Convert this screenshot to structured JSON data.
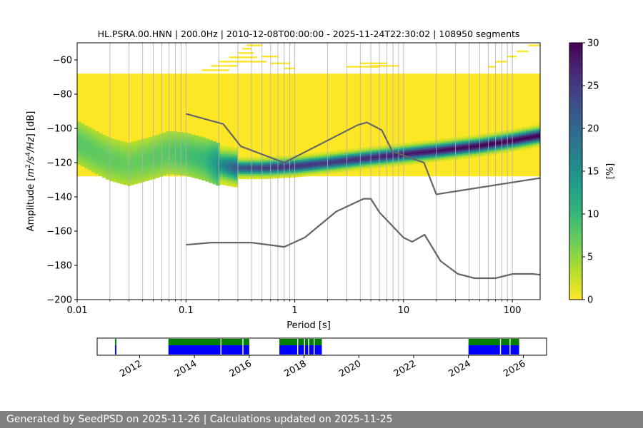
{
  "chart_data": {
    "type": "heatmap",
    "title": "HL.PSRA.00.HNN | 200.0Hz | 2010-12-08T00:00:00 - 2025-11-24T22:30:02 | 108950 segments",
    "xlabel": "Period [s]",
    "ylabel_parts": [
      "Amplitude [",
      "m",
      "2",
      "/",
      "s",
      "4",
      "/",
      "Hz",
      "] [dB]"
    ],
    "x_scale": "log",
    "xlim": [
      0.01,
      180
    ],
    "ylim": [
      -200,
      -50
    ],
    "x_ticks": [
      {
        "value": 0.01,
        "label": "0.01"
      },
      {
        "value": 0.1,
        "label": "0.1"
      },
      {
        "value": 1,
        "label": "1"
      },
      {
        "value": 10,
        "label": "10"
      },
      {
        "value": 100,
        "label": "100"
      }
    ],
    "y_ticks": [
      {
        "value": -60,
        "label": "−60"
      },
      {
        "value": -80,
        "label": "−80"
      },
      {
        "value": -100,
        "label": "−100"
      },
      {
        "value": -120,
        "label": "−120"
      },
      {
        "value": -140,
        "label": "−140"
      },
      {
        "value": -160,
        "label": "−160"
      },
      {
        "value": -180,
        "label": "−180"
      },
      {
        "value": -200,
        "label": "−200"
      }
    ],
    "grid": "x-minor",
    "colorbar": {
      "label": "[%]",
      "range": [
        0,
        30
      ],
      "ticks": [
        {
          "value": 0,
          "label": "0"
        },
        {
          "value": 5,
          "label": "5"
        },
        {
          "value": 10,
          "label": "10"
        },
        {
          "value": 15,
          "label": "15"
        },
        {
          "value": 20,
          "label": "20"
        },
        {
          "value": 25,
          "label": "25"
        },
        {
          "value": 30,
          "label": "30"
        }
      ],
      "colormap": [
        "#fde725",
        "#b5de2b",
        "#6ece58",
        "#35b779",
        "#1f9e89",
        "#26828e",
        "#31688e",
        "#3e4989",
        "#482878",
        "#440154"
      ]
    },
    "yellow_color": "#fde725",
    "noise_model_color": "#666666",
    "background_band": {
      "x": [
        0.0042,
        180
      ],
      "y_top": -68,
      "y_bottom": -128
    },
    "mode_curve": [
      {
        "x": 0.01,
        "y": -108
      },
      {
        "x": 0.015,
        "y": -114
      },
      {
        "x": 0.02,
        "y": -118
      },
      {
        "x": 0.03,
        "y": -121
      },
      {
        "x": 0.05,
        "y": -117
      },
      {
        "x": 0.07,
        "y": -114
      },
      {
        "x": 0.1,
        "y": -115
      },
      {
        "x": 0.15,
        "y": -118
      },
      {
        "x": 0.2,
        "y": -121
      },
      {
        "x": 0.3,
        "y": -123
      },
      {
        "x": 0.5,
        "y": -123
      },
      {
        "x": 1,
        "y": -122
      },
      {
        "x": 2,
        "y": -120
      },
      {
        "x": 5,
        "y": -117
      },
      {
        "x": 10,
        "y": -115
      },
      {
        "x": 20,
        "y": -113
      },
      {
        "x": 50,
        "y": -110
      },
      {
        "x": 100,
        "y": -107
      },
      {
        "x": 180,
        "y": -104
      }
    ],
    "mode_percent": [
      {
        "x": 0.01,
        "p": 8
      },
      {
        "x": 0.03,
        "p": 7
      },
      {
        "x": 0.07,
        "p": 8
      },
      {
        "x": 0.15,
        "p": 10
      },
      {
        "x": 0.3,
        "p": 22
      },
      {
        "x": 0.7,
        "p": 26
      },
      {
        "x": 2,
        "p": 25
      },
      {
        "x": 10,
        "p": 28
      },
      {
        "x": 50,
        "p": 30
      },
      {
        "x": 180,
        "p": 30
      }
    ],
    "nhnm": [
      {
        "x": 0.1,
        "y": -91.5
      },
      {
        "x": 0.22,
        "y": -97.4
      },
      {
        "x": 0.32,
        "y": -110.5
      },
      {
        "x": 0.8,
        "y": -120
      },
      {
        "x": 3.8,
        "y": -98
      },
      {
        "x": 4.6,
        "y": -96.5
      },
      {
        "x": 6.3,
        "y": -101
      },
      {
        "x": 7.9,
        "y": -113.5
      },
      {
        "x": 15.4,
        "y": -120
      },
      {
        "x": 20,
        "y": -138.5
      },
      {
        "x": 180,
        "y": -129
      }
    ],
    "nlnm": [
      {
        "x": 0.1,
        "y": -168
      },
      {
        "x": 0.17,
        "y": -166.7
      },
      {
        "x": 0.4,
        "y": -166.7
      },
      {
        "x": 0.8,
        "y": -169.2
      },
      {
        "x": 1.24,
        "y": -163.7
      },
      {
        "x": 2.4,
        "y": -148.6
      },
      {
        "x": 4.3,
        "y": -141.1
      },
      {
        "x": 5,
        "y": -141.1
      },
      {
        "x": 6,
        "y": -149
      },
      {
        "x": 10,
        "y": -163.8
      },
      {
        "x": 12,
        "y": -166.2
      },
      {
        "x": 15.6,
        "y": -162.1
      },
      {
        "x": 21.9,
        "y": -177.5
      },
      {
        "x": 31.6,
        "y": -185
      },
      {
        "x": 45,
        "y": -187.5
      },
      {
        "x": 70,
        "y": -187.5
      },
      {
        "x": 101,
        "y": -185
      },
      {
        "x": 154,
        "y": -185
      },
      {
        "x": 180,
        "y": -185.5
      }
    ],
    "yellow_sparse": [
      {
        "x0": 0.012,
        "x1": 0.015,
        "y": -123
      },
      {
        "x0": 0.015,
        "x1": 0.03,
        "y": -125
      },
      {
        "x0": 0.03,
        "x1": 0.4,
        "y": -126
      },
      {
        "x0": 0.017,
        "x1": 0.2,
        "y": -127.5
      },
      {
        "x0": 2,
        "x1": 30,
        "y": -124.5
      },
      {
        "x0": 1,
        "x1": 9,
        "y": -126
      },
      {
        "x0": 10,
        "x1": 50,
        "y": -122.5
      },
      {
        "x0": 20,
        "x1": 120,
        "y": -119.5
      },
      {
        "x0": 60,
        "x1": 180,
        "y": -117
      },
      {
        "x0": 100,
        "x1": 180,
        "y": -114.5
      },
      {
        "x0": 0.14,
        "x1": 0.25,
        "y": -66
      },
      {
        "x0": 0.17,
        "x1": 0.3,
        "y": -63.5
      },
      {
        "x0": 0.2,
        "x1": 0.55,
        "y": -61
      },
      {
        "x0": 0.25,
        "x1": 0.45,
        "y": -58.5
      },
      {
        "x0": 0.3,
        "x1": 0.42,
        "y": -56
      },
      {
        "x0": 0.33,
        "x1": 0.4,
        "y": -53.5
      },
      {
        "x0": 0.36,
        "x1": 0.5,
        "y": -51.5
      },
      {
        "x0": 0.5,
        "x1": 0.7,
        "y": -58
      },
      {
        "x0": 0.6,
        "x1": 0.9,
        "y": -62
      },
      {
        "x0": 0.8,
        "x1": 1.0,
        "y": -65
      },
      {
        "x0": 3,
        "x1": 6,
        "y": -64
      },
      {
        "x0": 4,
        "x1": 7,
        "y": -62
      },
      {
        "x0": 5,
        "x1": 9,
        "y": -63.5
      },
      {
        "x0": 60,
        "x1": 70,
        "y": -64
      },
      {
        "x0": 70,
        "x1": 90,
        "y": -61
      },
      {
        "x0": 90,
        "x1": 110,
        "y": -58
      },
      {
        "x0": 110,
        "x1": 140,
        "y": -55
      },
      {
        "x0": 140,
        "x1": 180,
        "y": -51.5
      }
    ]
  },
  "timeline": {
    "x_ticks": [
      {
        "year": 2012,
        "label": "2012"
      },
      {
        "year": 2014,
        "label": "2014"
      },
      {
        "year": 2016,
        "label": "2016"
      },
      {
        "year": 2018,
        "label": "2018"
      },
      {
        "year": 2020,
        "label": "2020"
      },
      {
        "year": 2022,
        "label": "2022"
      },
      {
        "year": 2024,
        "label": "2024"
      },
      {
        "year": 2026,
        "label": "2026"
      }
    ],
    "xlim": [
      2010.45,
      2026.85
    ],
    "upper_color": "#007f00",
    "lower_color": "#0000ff",
    "segments": [
      {
        "start": 2011.1,
        "end": 2011.15
      },
      {
        "start": 2013.05,
        "end": 2016.0
      },
      {
        "start": 2017.1,
        "end": 2018.65
      },
      {
        "start": 2024.0,
        "end": 2025.85
      }
    ],
    "gaps": [
      2014.95,
      2015.75,
      2017.75,
      2018.0,
      2018.15,
      2018.35,
      2025.15,
      2025.5
    ]
  },
  "footer_text": "Generated by SeedPSD on 2025-11-26 | Calculations updated on 2025-11-25"
}
